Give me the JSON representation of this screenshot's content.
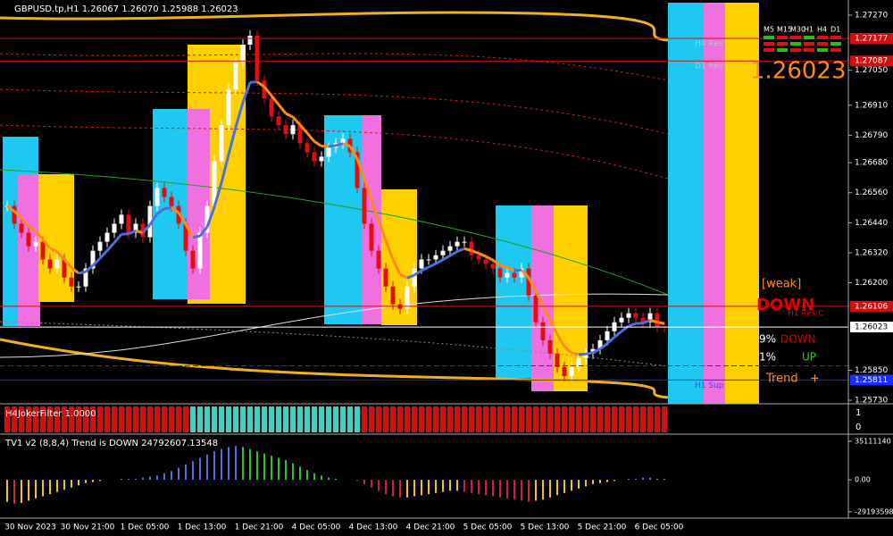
{
  "header": "GBPUSD.tp,H1  1.26067 1.26070 1.25988 1.26023",
  "price_chart": {
    "type": "candlestick",
    "up_color": "#ffffff",
    "down_color": "#e01010",
    "closes": [
      1.26507,
      1.26436,
      1.264,
      1.26346,
      1.26364,
      1.26293,
      1.26257,
      1.26293,
      1.26221,
      1.26185,
      1.26185,
      1.26257,
      1.26328,
      1.26364,
      1.264,
      1.26436,
      1.26472,
      1.264,
      1.26436,
      1.26382,
      1.26507,
      1.26579,
      1.26543,
      1.26507,
      1.26436,
      1.26328,
      1.26257,
      1.264,
      1.26507,
      1.26686,
      1.2683,
      1.26973,
      1.2708,
      1.27152,
      1.27188,
      1.27009,
      1.26937,
      1.26865,
      1.2683,
      1.26794,
      1.2683,
      1.26758,
      1.26722,
      1.26686,
      1.26704,
      1.2674,
      1.26758,
      1.26776,
      1.26722,
      1.26579,
      1.26436,
      1.26328,
      1.26257,
      1.26185,
      1.26114,
      1.26096,
      1.26185,
      1.26257,
      1.26293,
      1.26293,
      1.2631,
      1.26328,
      1.26346,
      1.26364,
      1.26364,
      1.2631,
      1.26293,
      1.26275,
      1.26257,
      1.26221,
      1.26239,
      1.26221,
      1.26257,
      1.26149,
      1.26042,
      1.2597,
      1.25917,
      1.25863,
      1.25827,
      1.25863,
      1.25899,
      1.25917,
      1.25935,
      1.2597,
      1.26006,
      1.26042,
      1.2606,
      1.26078,
      1.2606,
      1.26042,
      1.26078,
      1.26024,
      1.26023
    ],
    "ylim": [
      1.25716,
      1.2732
    ],
    "yticks": [
      {
        "value": 1.2727,
        "label": "1.27270"
      },
      {
        "value": 1.2705,
        "label": "1.27050"
      },
      {
        "value": 1.2691,
        "label": "1.26910"
      },
      {
        "value": 1.2679,
        "label": "1.26790"
      },
      {
        "value": 1.2668,
        "label": "1.26680"
      },
      {
        "value": 1.2656,
        "label": "1.26560"
      },
      {
        "value": 1.2644,
        "label": "1.26440"
      },
      {
        "value": 1.2632,
        "label": "1.26320"
      },
      {
        "value": 1.262,
        "label": "1.26200"
      },
      {
        "value": 1.2585,
        "label": "1.25850"
      },
      {
        "value": 1.2573,
        "label": "1.25730"
      }
    ]
  },
  "levels": [
    {
      "name": "H4 Res",
      "value": 1.27177,
      "label": "1.27177",
      "color": "#d01010"
    },
    {
      "name": "D1 Res",
      "value": 1.27087,
      "label": "1.27087",
      "color": "#d01010"
    },
    {
      "value": 1.26106,
      "label": "1.26106",
      "color": "#d01010"
    },
    {
      "value": 1.26023,
      "label": "1.26023",
      "color": "#ffffff"
    },
    {
      "value": 1.25868,
      "color": "#1a2cff"
    },
    {
      "name": "H1 Sup",
      "value": 1.25811,
      "label": "1.25811",
      "color": "#1a2cff"
    }
  ],
  "last_price": "1.26023",
  "dashboard": {
    "timeframes": [
      "M5",
      "M15",
      "M30",
      "H1",
      "H4",
      "D1"
    ],
    "strength": "[weak]",
    "signal": "DOWN",
    "note": "H1 Res C",
    "rows": [
      {
        "left": "9%",
        "right": "DOWN"
      },
      {
        "left": "1%",
        "right": "UP"
      },
      {
        "left": "Trend",
        "right": "+"
      }
    ]
  },
  "h4_filter": {
    "label": "H4JokerFilter 1.0000",
    "axis": [
      "1",
      "0"
    ]
  },
  "tv1": {
    "label": "TV1 v2 (8,8,4) Trend is DOWN 24792607.13548",
    "ylim": [
      -34900000,
      40800000
    ],
    "yticks": [
      35111140,
      {
        "value": 0,
        "label": "0.00"
      },
      -29193598
    ],
    "values": [
      -20000000,
      -22000000,
      -21000000,
      -19000000,
      -17000000,
      -15000000,
      -13000000,
      -11000000,
      -9000000,
      -7000000,
      -5000000,
      -3000000,
      -2000000,
      -1000000,
      0,
      0,
      1000000,
      1000000,
      1000000,
      2000000,
      3000000,
      4000000,
      6000000,
      8000000,
      11000000,
      14000000,
      17000000,
      20000000,
      23000000,
      26000000,
      28000000,
      30000000,
      31000000,
      30000000,
      28000000,
      26000000,
      24000000,
      22000000,
      20000000,
      18000000,
      15000000,
      12000000,
      9000000,
      6000000,
      4000000,
      2000000,
      1000000,
      0,
      0,
      -1000000,
      -4000000,
      -7000000,
      -10000000,
      -13000000,
      -15000000,
      -16000000,
      -16000000,
      -15000000,
      -14000000,
      -13000000,
      -12000000,
      -11000000,
      -10000000,
      -10000000,
      -11000000,
      -12000000,
      -13000000,
      -14000000,
      -15000000,
      -16000000,
      -17000000,
      -18000000,
      -19000000,
      -20000000,
      -19000000,
      -18000000,
      -16000000,
      -14000000,
      -12000000,
      -10000000,
      -8000000,
      -6000000,
      -4000000,
      -3000000,
      -2000000,
      -1000000,
      0,
      1000000,
      1000000,
      2000000,
      2000000,
      1000000,
      1000000
    ]
  },
  "time_labels": [
    "30 Nov 2023",
    "30 Nov 21:00",
    "1 Dec 05:00",
    "1 Dec 13:00",
    "1 Dec 21:00",
    "4 Dec 05:00",
    "4 Dec 13:00",
    "4 Dec 21:00",
    "5 Dec 05:00",
    "5 Dec 13:00",
    "5 Dec 21:00",
    "6 Dec 05:00"
  ]
}
